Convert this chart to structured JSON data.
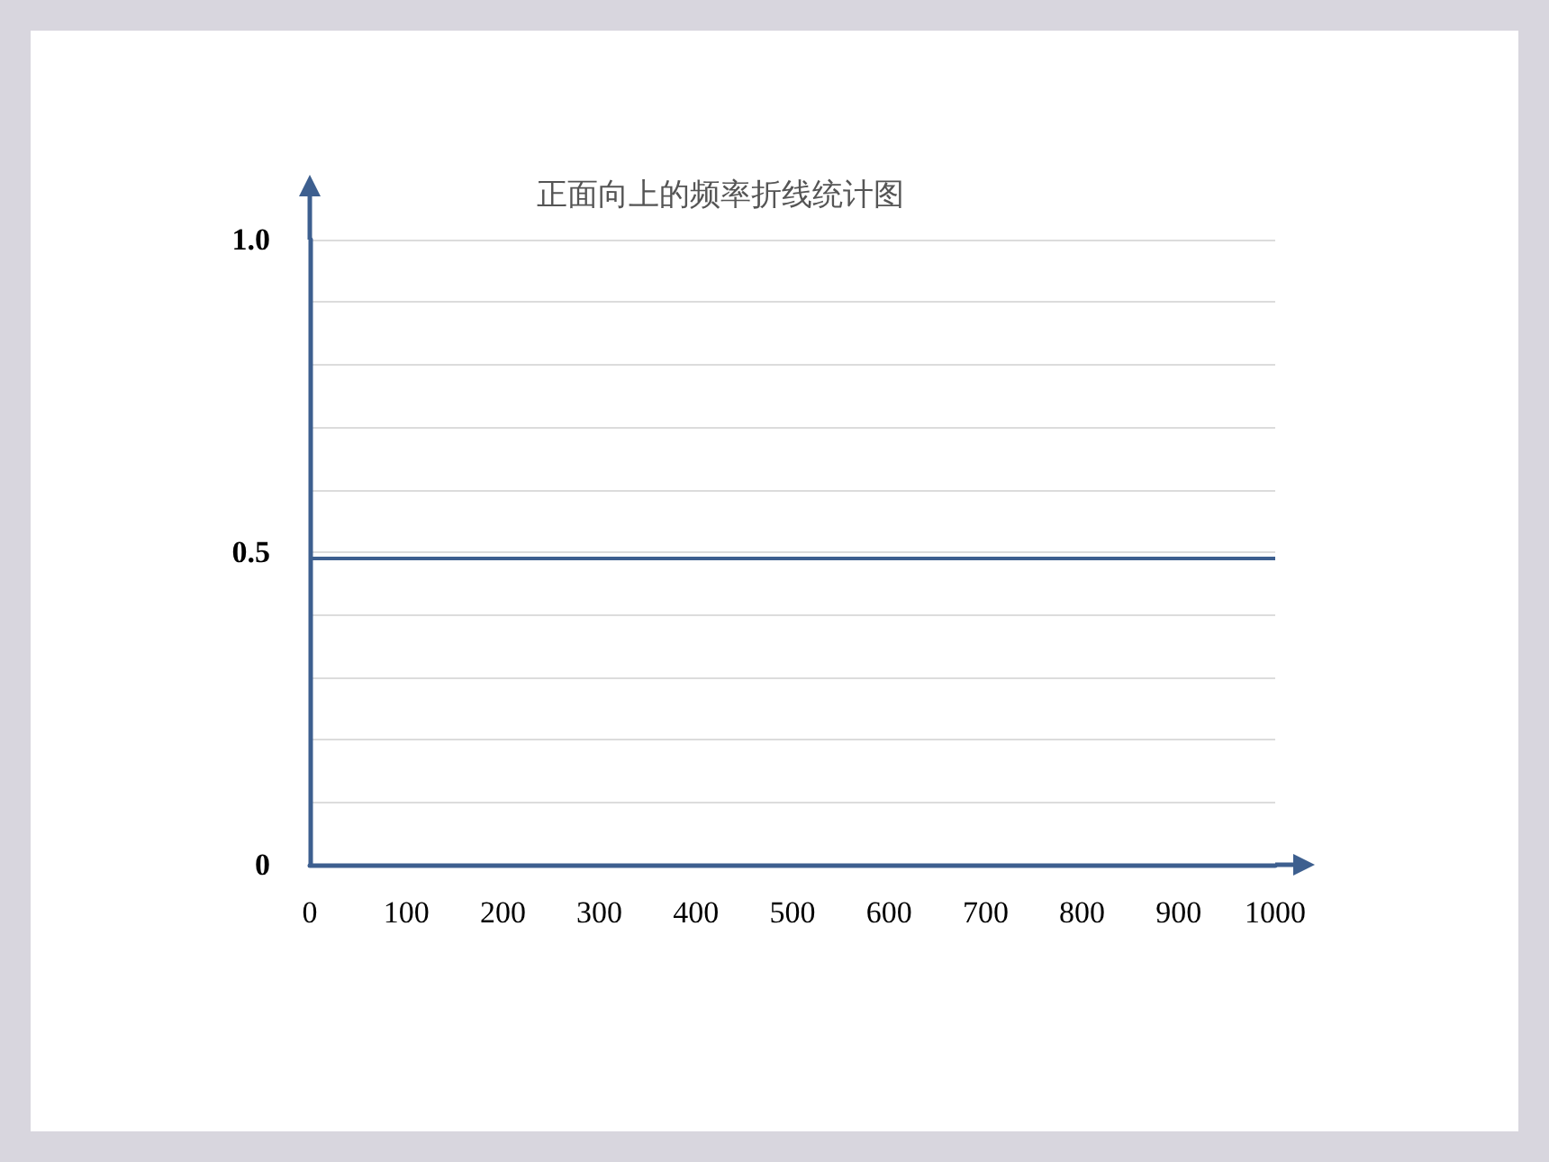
{
  "chart_data": {
    "type": "line",
    "title": "正面向上的频率折线统计图",
    "xlim": [
      0,
      1000
    ],
    "xticks": [
      0,
      100,
      200,
      300,
      400,
      500,
      600,
      700,
      800,
      900,
      1000
    ],
    "ylim": [
      0,
      1
    ],
    "yticks": [
      0,
      {
        "value": 0.1,
        "label": null
      },
      {
        "value": 0.2,
        "label": null
      },
      {
        "value": 0.3,
        "label": null
      },
      {
        "value": 0.4,
        "label": null
      },
      0.5,
      {
        "value": 0.6,
        "label": null
      },
      {
        "value": 0.7,
        "label": null
      },
      {
        "value": 0.8,
        "label": null
      },
      {
        "value": 0.9,
        "label": null
      },
      {
        "value": 1,
        "label": "1.0"
      }
    ],
    "ref_lines": [
      {
        "axis": "y",
        "value": 0.49,
        "color": "#3d5f8f"
      }
    ],
    "grid": "y"
  }
}
